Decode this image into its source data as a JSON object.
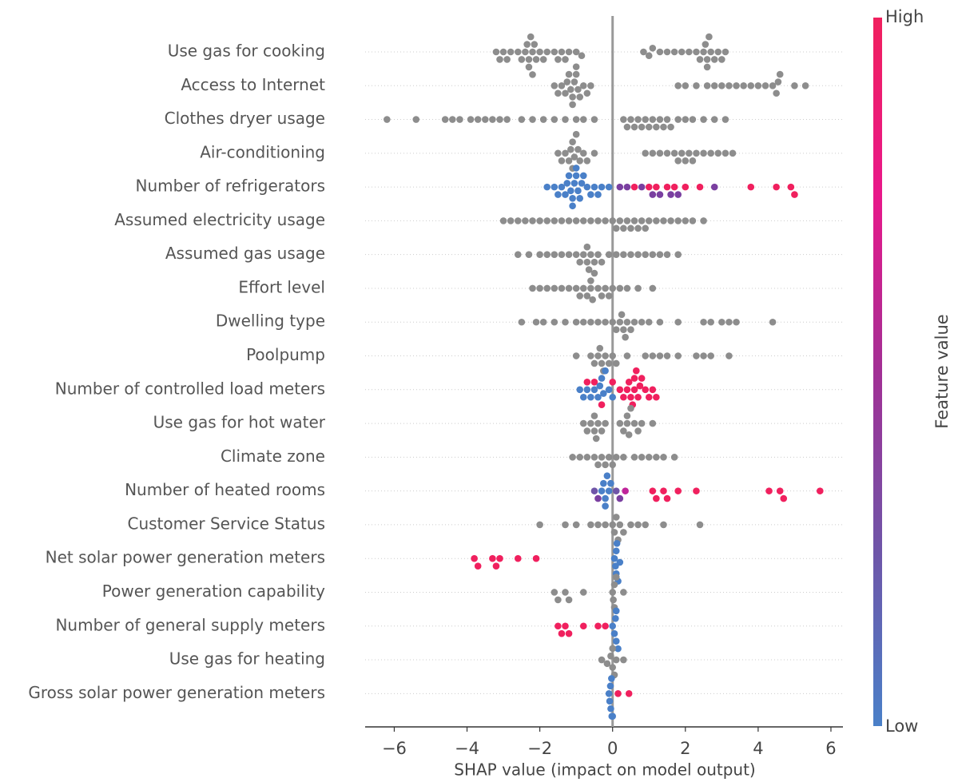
{
  "chart_data": {
    "type": "beeswarm",
    "xlabel": "SHAP value (impact on model output)",
    "xlim": [
      -6.8,
      6.33
    ],
    "xticks": [
      {
        "value": -6,
        "label": "−6"
      },
      {
        "value": -4,
        "label": "−4"
      },
      {
        "value": -2,
        "label": "−2"
      },
      0,
      2,
      4,
      6
    ],
    "colorbar": {
      "colors": [
        "#4a80c8",
        "#6f55a8",
        "#a22f95",
        "#e8188a",
        "#f0205e"
      ],
      "high": "High",
      "low": "Low",
      "label": "Feature value"
    },
    "rows": [
      {
        "name": "Use gas for cooking",
        "color": "#8d8d8d",
        "points": [
          -3.2,
          -3.1,
          -3.0,
          -2.9,
          -2.8,
          -2.6,
          -2.5,
          -2.4,
          -2.35,
          -2.3,
          -2.3,
          -2.25,
          -2.2,
          -2.2,
          -2.15,
          -2.1,
          -2.0,
          -1.9,
          -1.8,
          -1.6,
          -1.5,
          -1.4,
          -1.3,
          -1.2,
          -1.0,
          -0.85,
          0.85,
          1.0,
          1.1,
          1.3,
          1.5,
          1.7,
          1.9,
          2.1,
          2.3,
          2.4,
          2.5,
          2.55,
          2.6,
          2.6,
          2.65,
          2.7,
          2.8,
          2.9,
          3.0,
          3.1
        ]
      },
      {
        "name": "Access to Internet",
        "color": "#8d8d8d",
        "points": [
          -1.6,
          -1.5,
          -1.4,
          -1.3,
          -1.25,
          -1.2,
          -1.15,
          -1.1,
          -1.1,
          -1.05,
          -1.0,
          -1.0,
          -0.95,
          -0.9,
          -0.8,
          -0.7,
          -0.6,
          1.8,
          2.0,
          2.3,
          2.6,
          2.8,
          3.0,
          3.2,
          3.4,
          3.6,
          3.8,
          4.0,
          4.2,
          4.4,
          4.5,
          4.55,
          4.6,
          5.0,
          5.3
        ]
      },
      {
        "name": "Clothes dryer usage",
        "color": "#8d8d8d",
        "points": [
          -6.2,
          -5.4,
          -4.6,
          -4.4,
          -4.2,
          -3.9,
          -3.7,
          -3.5,
          -3.3,
          -3.1,
          -2.9,
          -2.5,
          -2.2,
          -1.9,
          -1.6,
          -1.3,
          -1.0,
          -0.8,
          -0.5,
          0.3,
          0.4,
          0.5,
          0.6,
          0.7,
          0.8,
          0.9,
          1.0,
          1.1,
          1.2,
          1.3,
          1.4,
          1.5,
          1.6,
          1.8,
          2.0,
          2.2,
          2.5,
          2.8,
          3.1
        ]
      },
      {
        "name": "Air-conditioning",
        "color": "#8d8d8d",
        "points": [
          -1.5,
          -1.4,
          -1.3,
          -1.2,
          -1.15,
          -1.1,
          -1.1,
          -1.05,
          -1.0,
          -0.95,
          -0.9,
          -0.8,
          -0.7,
          -0.5,
          0.9,
          1.1,
          1.3,
          1.5,
          1.7,
          1.8,
          1.9,
          2.0,
          2.1,
          2.2,
          2.3,
          2.5,
          2.7,
          2.9,
          3.1,
          3.3
        ]
      },
      {
        "name": "Number of refrigerators",
        "points": [
          -1.8,
          -1.6,
          -1.5,
          -1.4,
          -1.3,
          -1.25,
          -1.2,
          -1.15,
          -1.1,
          -1.1,
          -1.05,
          -1.0,
          -1.0,
          -0.95,
          -0.9,
          -0.85,
          -0.8,
          -0.7,
          -0.6,
          -0.5,
          -0.4,
          -0.3,
          -0.1,
          0.2,
          0.4,
          0.6,
          0.8,
          1.0,
          1.1,
          1.2,
          1.3,
          1.5,
          1.6,
          1.7,
          1.8,
          2.0,
          2.4,
          2.8,
          3.8,
          4.5,
          4.9,
          5.0
        ],
        "colors": [
          "#4a80c8",
          "#4a80c8",
          "#4a80c8",
          "#4a80c8",
          "#4a80c8",
          "#4a80c8",
          "#4a80c8",
          "#4a80c8",
          "#4a80c8",
          "#4a80c8",
          "#4a80c8",
          "#4a80c8",
          "#4a80c8",
          "#4a80c8",
          "#4a80c8",
          "#4a80c8",
          "#4a80c8",
          "#4a80c8",
          "#4a80c8",
          "#4a80c8",
          "#4a80c8",
          "#4a80c8",
          "#4a80c8",
          "#7a3fa0",
          "#7a3fa0",
          "#f0205e",
          "#7a3fa0",
          "#f0205e",
          "#7a3fa0",
          "#f0205e",
          "#7a3fa0",
          "#f0205e",
          "#7a3fa0",
          "#f0205e",
          "#7a3fa0",
          "#f0205e",
          "#f0205e",
          "#7a3fa0",
          "#f0205e",
          "#f0205e",
          "#f0205e",
          "#f0205e"
        ]
      },
      {
        "name": "Assumed electricity usage",
        "color": "#8d8d8d",
        "points": [
          -3.0,
          -2.8,
          -2.6,
          -2.4,
          -2.2,
          -2.0,
          -1.8,
          -1.6,
          -1.4,
          -1.2,
          -1.0,
          -0.8,
          -0.6,
          -0.4,
          -0.2,
          0.0,
          0.1,
          0.2,
          0.3,
          0.4,
          0.5,
          0.6,
          0.7,
          0.8,
          0.9,
          1.0,
          1.2,
          1.4,
          1.6,
          1.8,
          2.0,
          2.2,
          2.5
        ]
      },
      {
        "name": "Assumed gas usage",
        "color": "#8d8d8d",
        "points": [
          -2.6,
          -2.3,
          -2.0,
          -1.8,
          -1.6,
          -1.4,
          -1.2,
          -1.0,
          -0.9,
          -0.8,
          -0.7,
          -0.7,
          -0.65,
          -0.6,
          -0.5,
          -0.4,
          -0.3,
          -0.1,
          0.1,
          0.3,
          0.5,
          0.7,
          0.9,
          1.1,
          1.3,
          1.5,
          1.8
        ]
      },
      {
        "name": "Effort level",
        "color": "#8d8d8d",
        "points": [
          -2.2,
          -2.0,
          -1.8,
          -1.6,
          -1.4,
          -1.2,
          -1.0,
          -0.9,
          -0.8,
          -0.7,
          -0.6,
          -0.6,
          -0.55,
          -0.5,
          -0.4,
          -0.3,
          -0.2,
          -0.1,
          0.0,
          0.2,
          0.4,
          0.7,
          1.1
        ]
      },
      {
        "name": "Dwelling type",
        "color": "#8d8d8d",
        "points": [
          -2.5,
          -2.1,
          -1.9,
          -1.6,
          -1.3,
          -1.0,
          -0.8,
          -0.6,
          -0.4,
          -0.2,
          0.0,
          0.1,
          0.2,
          0.25,
          0.3,
          0.35,
          0.4,
          0.5,
          0.6,
          0.8,
          1.0,
          1.3,
          1.8,
          2.5,
          2.7,
          3.0,
          3.2,
          3.4,
          4.4
        ]
      },
      {
        "name": "Poolpump",
        "color": "#8d8d8d",
        "points": [
          -1.0,
          -0.6,
          -0.5,
          -0.4,
          -0.35,
          -0.3,
          -0.25,
          -0.2,
          -0.1,
          0.0,
          0.1,
          0.4,
          0.9,
          1.1,
          1.3,
          1.5,
          1.8,
          2.3,
          2.5,
          2.7,
          3.2
        ]
      },
      {
        "name": "Number of controlled load meters",
        "points": [
          -0.9,
          -0.8,
          -0.7,
          -0.6,
          -0.5,
          -0.4,
          -0.35,
          -0.3,
          -0.25,
          -0.2,
          -0.1,
          0.0,
          -0.7,
          -0.5,
          -0.3,
          0.0,
          0.2,
          0.3,
          0.4,
          0.45,
          0.5,
          0.55,
          0.6,
          0.6,
          0.65,
          0.7,
          0.75,
          0.8,
          0.9,
          1.0,
          1.1,
          1.2
        ],
        "colors": [
          "#4a80c8",
          "#4a80c8",
          "#4a80c8",
          "#4a80c8",
          "#4a80c8",
          "#4a80c8",
          "#4a80c8",
          "#4a80c8",
          "#4a80c8",
          "#4a80c8",
          "#4a80c8",
          "#4a80c8",
          "#f0205e",
          "#f0205e",
          "#f0205e",
          "#f0205e",
          "#f0205e",
          "#f0205e",
          "#f0205e",
          "#f0205e",
          "#f0205e",
          "#f0205e",
          "#f0205e",
          "#f0205e",
          "#f0205e",
          "#f0205e",
          "#f0205e",
          "#f0205e",
          "#f0205e",
          "#f0205e",
          "#f0205e",
          "#f0205e"
        ]
      },
      {
        "name": "Use gas for hot water",
        "color": "#8d8d8d",
        "points": [
          -0.8,
          -0.7,
          -0.6,
          -0.5,
          -0.5,
          -0.45,
          -0.4,
          -0.3,
          -0.2,
          0.2,
          0.3,
          0.4,
          0.4,
          0.45,
          0.5,
          0.6,
          0.7,
          0.8,
          1.1
        ]
      },
      {
        "name": "Climate zone",
        "color": "#8d8d8d",
        "points": [
          -1.1,
          -0.9,
          -0.7,
          -0.5,
          -0.4,
          -0.3,
          -0.2,
          -0.1,
          0.0,
          0.1,
          0.3,
          0.6,
          0.8,
          1.0,
          1.2,
          1.4,
          1.7
        ]
      },
      {
        "name": "Number of heated rooms",
        "points": [
          -0.3,
          -0.25,
          -0.2,
          -0.2,
          -0.15,
          -0.1,
          -0.05,
          -0.5,
          -0.4,
          0.1,
          0.2,
          0.35,
          1.1,
          1.2,
          1.4,
          1.5,
          1.8,
          2.3,
          4.3,
          4.6,
          4.7,
          5.7
        ],
        "colors": [
          "#4a80c8",
          "#4a80c8",
          "#4a80c8",
          "#4a80c8",
          "#4a80c8",
          "#4a80c8",
          "#4a80c8",
          "#6f55a8",
          "#7a3fa0",
          "#6f55a8",
          "#7a3fa0",
          "#c0249a",
          "#f0205e",
          "#f0205e",
          "#f0205e",
          "#f0205e",
          "#f0205e",
          "#f0205e",
          "#f0205e",
          "#f0205e",
          "#f0205e",
          "#f0205e"
        ]
      },
      {
        "name": "Customer Service Status",
        "color": "#8d8d8d",
        "points": [
          -2.0,
          -1.3,
          -1.0,
          -0.6,
          -0.4,
          -0.2,
          0.0,
          0.05,
          0.1,
          0.15,
          0.2,
          0.3,
          0.5,
          0.7,
          0.9,
          1.4,
          2.4
        ]
      },
      {
        "name": "Net solar power generation meters",
        "points": [
          -3.8,
          -3.7,
          -3.3,
          -3.2,
          -3.1,
          -2.6,
          -2.1,
          0.05,
          0.08,
          0.1,
          0.1,
          0.12,
          0.15,
          0.2
        ],
        "colors": [
          "#f0205e",
          "#f0205e",
          "#f0205e",
          "#f0205e",
          "#f0205e",
          "#f0205e",
          "#f0205e",
          "#4a80c8",
          "#4a80c8",
          "#4a80c8",
          "#4a80c8",
          "#4a80c8",
          "#4a80c8",
          "#4a80c8"
        ]
      },
      {
        "name": "Power generation capability",
        "color": "#8d8d8d",
        "points": [
          -1.6,
          -1.5,
          -1.3,
          -1.2,
          -0.8,
          0.0,
          0.02,
          0.05,
          0.05,
          0.1,
          0.3
        ]
      },
      {
        "name": "Number of general supply meters",
        "points": [
          -1.5,
          -1.4,
          -1.3,
          -1.2,
          -0.8,
          -0.4,
          -0.2,
          0.0,
          0.05,
          0.08,
          0.1,
          0.1,
          0.15
        ],
        "colors": [
          "#f0205e",
          "#f0205e",
          "#f0205e",
          "#f0205e",
          "#f0205e",
          "#f0205e",
          "#f0205e",
          "#4a80c8",
          "#4a80c8",
          "#4a80c8",
          "#4a80c8",
          "#4a80c8",
          "#4a80c8"
        ]
      },
      {
        "name": "Use gas for heating",
        "color": "#8d8d8d",
        "points": [
          -0.3,
          -0.15,
          -0.05,
          0.0,
          0.0,
          0.05,
          0.1,
          0.3
        ]
      },
      {
        "name": "Gross solar power generation meters",
        "points": [
          -0.1,
          -0.08,
          -0.06,
          -0.05,
          -0.03,
          -0.02,
          0.0,
          0.15,
          0.45
        ],
        "colors": [
          "#4a80c8",
          "#4a80c8",
          "#4a80c8",
          "#4a80c8",
          "#4a80c8",
          "#4a80c8",
          "#4a80c8",
          "#f0205e",
          "#f0205e"
        ]
      }
    ]
  }
}
